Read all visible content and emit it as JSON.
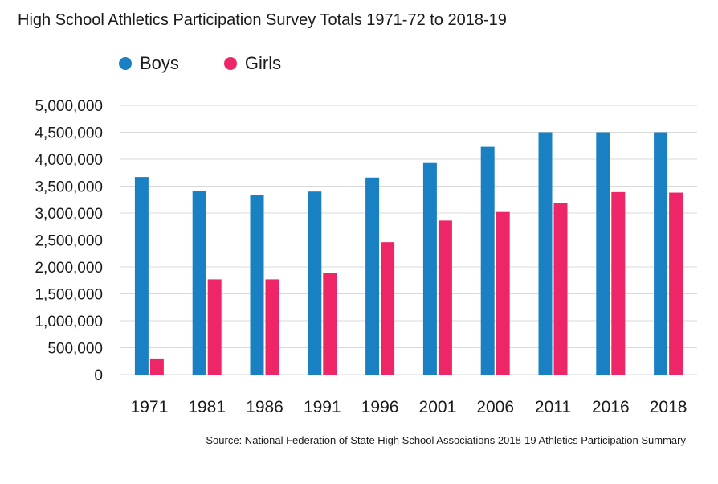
{
  "chart_data": {
    "type": "bar",
    "title": "High School Athletics Participation Survey Totals 1971-72 to 2018-19",
    "xlabel": "",
    "ylabel": "",
    "categories": [
      "1971",
      "1981",
      "1986",
      "1991",
      "1996",
      "2001",
      "2006",
      "2011",
      "2016",
      "2018"
    ],
    "series": [
      {
        "name": "Boys",
        "color": "#1a80c4",
        "values": [
          3670000,
          3410000,
          3340000,
          3400000,
          3660000,
          3930000,
          4230000,
          4500000,
          4500000,
          4500000
        ]
      },
      {
        "name": "Girls",
        "color": "#ee2668",
        "values": [
          300000,
          1770000,
          1770000,
          1890000,
          2460000,
          2860000,
          3020000,
          3190000,
          3390000,
          3380000
        ]
      }
    ],
    "ylim": [
      0,
      5000000
    ],
    "yticks": [
      0,
      500000,
      1000000,
      1500000,
      2000000,
      2500000,
      3000000,
      3500000,
      4000000,
      4500000,
      5000000
    ],
    "ytick_labels": [
      "0",
      "500,000",
      "1,000,000",
      "1,500,000",
      "2,000,000",
      "2,500,000",
      "3,000,000",
      "3,500,000",
      "4,000,000",
      "4,500,000",
      "5,000,000"
    ],
    "grid": true,
    "legend_position": "top-left"
  },
  "source": "Source: National Federation of State High School Associations 2018-19 Athletics Participation Summary"
}
